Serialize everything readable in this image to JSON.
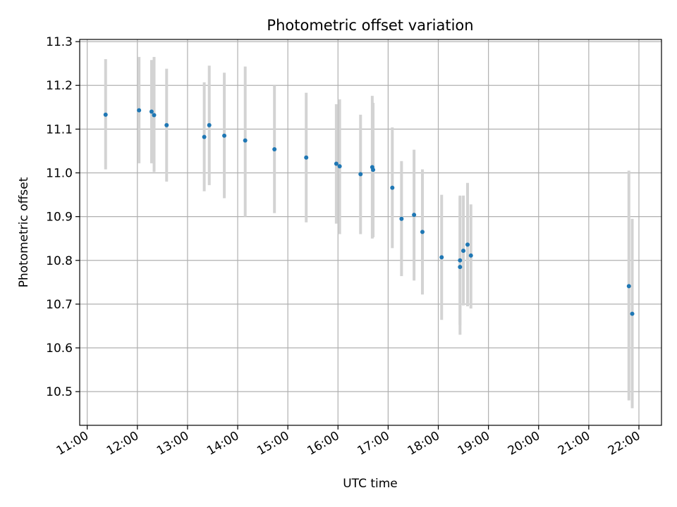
{
  "chart_data": {
    "type": "scatter",
    "title": "Photometric offset variation",
    "xlabel": "UTC time",
    "ylabel": "Photometric offset",
    "xlim": [
      "10:51",
      "22:27"
    ],
    "ylim": [
      10.423,
      11.305
    ],
    "x_ticks": [
      "11:00",
      "12:00",
      "13:00",
      "14:00",
      "15:00",
      "16:00",
      "17:00",
      "18:00",
      "19:00",
      "20:00",
      "21:00",
      "22:00"
    ],
    "y_ticks": [
      "10.5",
      "10.6",
      "10.7",
      "10.8",
      "10.9",
      "11.0",
      "11.1",
      "11.2",
      "11.3"
    ],
    "grid": true,
    "colors": {
      "points": "#1f77b4",
      "errorbars": "#d3d3d3",
      "grid": "#b0b0b0"
    },
    "series": [
      {
        "points": [
          {
            "x": "11:22",
            "y": 11.133,
            "low": 11.008,
            "high": 11.26
          },
          {
            "x": "12:02",
            "y": 11.143,
            "low": 11.022,
            "high": 11.265
          },
          {
            "x": "12:17",
            "y": 11.14,
            "low": 11.022,
            "high": 11.258
          },
          {
            "x": "12:20",
            "y": 11.132,
            "low": 11.002,
            "high": 11.265
          },
          {
            "x": "12:35",
            "y": 11.109,
            "low": 10.98,
            "high": 11.238
          },
          {
            "x": "13:20",
            "y": 11.082,
            "low": 10.958,
            "high": 11.207
          },
          {
            "x": "13:26",
            "y": 11.109,
            "low": 10.972,
            "high": 11.245
          },
          {
            "x": "13:44",
            "y": 11.085,
            "low": 10.942,
            "high": 11.229
          },
          {
            "x": "14:09",
            "y": 11.074,
            "low": 10.9,
            "high": 11.243
          },
          {
            "x": "14:44",
            "y": 11.054,
            "low": 10.908,
            "high": 11.2
          },
          {
            "x": "15:22",
            "y": 11.035,
            "low": 10.887,
            "high": 11.183
          },
          {
            "x": "15:58",
            "y": 11.021,
            "low": 10.884,
            "high": 11.157
          },
          {
            "x": "16:02",
            "y": 11.015,
            "low": 10.86,
            "high": 11.168
          },
          {
            "x": "16:27",
            "y": 10.997,
            "low": 10.86,
            "high": 11.133
          },
          {
            "x": "16:41",
            "y": 11.013,
            "low": 10.85,
            "high": 11.176
          },
          {
            "x": "16:42",
            "y": 11.007,
            "low": 10.853,
            "high": 11.16
          },
          {
            "x": "17:05",
            "y": 10.966,
            "low": 10.828,
            "high": 11.104
          },
          {
            "x": "17:16",
            "y": 10.895,
            "low": 10.764,
            "high": 11.027
          },
          {
            "x": "17:31",
            "y": 10.904,
            "low": 10.754,
            "high": 11.053
          },
          {
            "x": "17:41",
            "y": 10.865,
            "low": 10.722,
            "high": 11.008
          },
          {
            "x": "18:04",
            "y": 10.807,
            "low": 10.664,
            "high": 10.95
          },
          {
            "x": "18:26",
            "y": 10.8,
            "low": 10.652,
            "high": 10.948
          },
          {
            "x": "18:26",
            "y": 10.785,
            "low": 10.63,
            "high": 10.945
          },
          {
            "x": "18:30",
            "y": 10.822,
            "low": 10.697,
            "high": 10.948
          },
          {
            "x": "18:35",
            "y": 10.836,
            "low": 10.695,
            "high": 10.977
          },
          {
            "x": "18:39",
            "y": 10.811,
            "low": 10.69,
            "high": 10.928
          },
          {
            "x": "21:48",
            "y": 10.741,
            "low": 10.48,
            "high": 11.005
          },
          {
            "x": "21:52",
            "y": 10.678,
            "low": 10.462,
            "high": 10.895
          }
        ]
      }
    ]
  }
}
